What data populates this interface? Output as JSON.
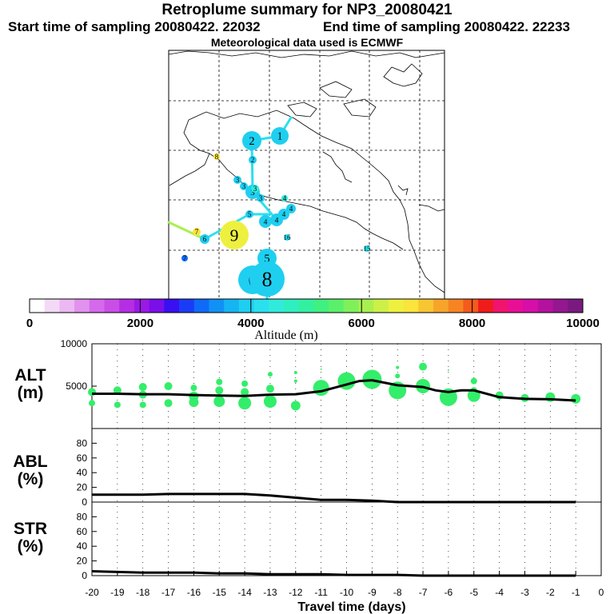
{
  "header": {
    "title": "Retroplume summary for NP3_20080421",
    "start_time": "Start time of sampling 20080422. 22032",
    "end_time": "End time of sampling 20080422. 22233",
    "met_data": "Meteorological data used is ECMWF"
  },
  "colorbar": {
    "min": 0,
    "max": 10000,
    "tick_labels": [
      "0",
      "2000",
      "4000",
      "6000",
      "8000",
      "10000"
    ],
    "tick_values": [
      0,
      2000,
      4000,
      6000,
      8000,
      10000
    ],
    "label": "Altitude (m)",
    "colors": [
      "#ffffff",
      "#f4d9f7",
      "#ecb8f2",
      "#e191ee",
      "#d569eb",
      "#c94ee6",
      "#b52ee4",
      "#9b19e6",
      "#7a0fea",
      "#3a0ff2",
      "#1a3cf7",
      "#0f6af7",
      "#1191f5",
      "#16b4f2",
      "#1fcff0",
      "#2ae0ee",
      "#30ebdc",
      "#2feec0",
      "#33f0a0",
      "#40f080",
      "#5af06a",
      "#80f05a",
      "#a8f050",
      "#cdf048",
      "#eef040",
      "#fbe43b",
      "#f8c632",
      "#f7a52a",
      "#f78422",
      "#f65a1c",
      "#f01c1c",
      "#f0146e",
      "#e80f96",
      "#d60fa8",
      "#b4129e",
      "#94178f",
      "#7a1a80"
    ]
  },
  "map": {
    "markers": [
      {
        "label": "1",
        "alt": 4000,
        "x": 350,
        "y": 170,
        "r": 11
      },
      {
        "label": "2",
        "alt": 4000,
        "x": 315,
        "y": 176,
        "r": 12
      },
      {
        "label": "2",
        "alt": 3900,
        "x": 316,
        "y": 200,
        "r": 5
      },
      {
        "label": "3",
        "alt": 4000,
        "x": 297,
        "y": 225,
        "r": 5
      },
      {
        "label": "3",
        "alt": 4000,
        "x": 305,
        "y": 233,
        "r": 5
      },
      {
        "label": "3",
        "alt": 4000,
        "x": 316,
        "y": 240,
        "r": 9
      },
      {
        "label": "3",
        "alt": 4500,
        "x": 319,
        "y": 236,
        "r": 5
      },
      {
        "label": "3",
        "alt": 4000,
        "x": 326,
        "y": 248,
        "r": 5
      },
      {
        "label": "4",
        "alt": 4500,
        "x": 356,
        "y": 248,
        "r": 4
      },
      {
        "label": "4",
        "alt": 4000,
        "x": 364,
        "y": 261,
        "r": 6
      },
      {
        "label": "4",
        "alt": 4000,
        "x": 355,
        "y": 268,
        "r": 7
      },
      {
        "label": "4",
        "alt": 4000,
        "x": 346,
        "y": 275,
        "r": 8
      },
      {
        "label": "4",
        "alt": 4000,
        "x": 332,
        "y": 277,
        "r": 8
      },
      {
        "label": "5",
        "alt": 4000,
        "x": 312,
        "y": 268,
        "r": 5
      },
      {
        "label": "6",
        "alt": 4000,
        "x": 256,
        "y": 299,
        "r": 6
      },
      {
        "label": "7",
        "alt": 7000,
        "x": 246,
        "y": 290,
        "r": 5
      },
      {
        "label": "8",
        "alt": 7000,
        "x": 271,
        "y": 196,
        "r": 4
      },
      {
        "label": "9",
        "alt": 6500,
        "x": 293,
        "y": 294,
        "r": 18
      },
      {
        "label": "16",
        "alt": 4200,
        "x": 359,
        "y": 297,
        "r": 4
      },
      {
        "label": "15",
        "alt": 4200,
        "x": 459,
        "y": 311,
        "r": 4
      },
      {
        "label": "7",
        "alt": 3000,
        "x": 231,
        "y": 323,
        "r": 4
      },
      {
        "label": "5",
        "alt": 4000,
        "x": 334,
        "y": 323,
        "r": 12
      },
      {
        "label": "6",
        "alt": 4000,
        "x": 316,
        "y": 350,
        "r": 18
      },
      {
        "label": "8",
        "alt": 4000,
        "x": 334,
        "y": 349,
        "r": 22
      }
    ]
  },
  "chart_data": [
    {
      "type": "scatter+line",
      "panel": "ALT",
      "ylabel": "ALT\n(m)",
      "ylabel_line1": "ALT",
      "ylabel_line2": "(m)",
      "xlim": [
        -20,
        0
      ],
      "ylim": [
        0,
        10000
      ],
      "ytick_labels": [
        "10000",
        "5000"
      ],
      "ytick_values": [
        10000,
        5000
      ],
      "median_line": {
        "x": [
          -20,
          -19,
          -18,
          -17,
          -16,
          -15,
          -14,
          -13,
          -12,
          -11,
          -10,
          -9.5,
          -9,
          -8,
          -7,
          -6.5,
          -6,
          -5.5,
          -5,
          -4,
          -3,
          -2,
          -1
        ],
        "y": [
          4100,
          4100,
          4050,
          4050,
          3950,
          3900,
          3850,
          4000,
          4050,
          4400,
          5200,
          5600,
          5700,
          5100,
          4900,
          4500,
          4300,
          4500,
          4500,
          3700,
          3500,
          3450,
          3300
        ]
      },
      "dots": [
        {
          "x": -20,
          "y": 4300,
          "s": 5
        },
        {
          "x": -20,
          "y": 3000,
          "s": 4
        },
        {
          "x": -19,
          "y": 4500,
          "s": 5
        },
        {
          "x": -19,
          "y": 2800,
          "s": 4
        },
        {
          "x": -18,
          "y": 4900,
          "s": 5
        },
        {
          "x": -18,
          "y": 4000,
          "s": 5
        },
        {
          "x": -18,
          "y": 2800,
          "s": 4
        },
        {
          "x": -17,
          "y": 5000,
          "s": 5
        },
        {
          "x": -17,
          "y": 3000,
          "s": 5
        },
        {
          "x": -16,
          "y": 4800,
          "s": 4
        },
        {
          "x": -16,
          "y": 3800,
          "s": 6
        },
        {
          "x": -16,
          "y": 3100,
          "s": 6
        },
        {
          "x": -15,
          "y": 5500,
          "s": 4
        },
        {
          "x": -15,
          "y": 4500,
          "s": 5
        },
        {
          "x": -15,
          "y": 3200,
          "s": 7
        },
        {
          "x": -14,
          "y": 5300,
          "s": 4
        },
        {
          "x": -14,
          "y": 4300,
          "s": 5
        },
        {
          "x": -14,
          "y": 3000,
          "s": 8
        },
        {
          "x": -13,
          "y": 6400,
          "s": 3
        },
        {
          "x": -13,
          "y": 4700,
          "s": 5
        },
        {
          "x": -13,
          "y": 3200,
          "s": 8
        },
        {
          "x": -12,
          "y": 6600,
          "s": 2
        },
        {
          "x": -12,
          "y": 5600,
          "s": 2
        },
        {
          "x": -12,
          "y": 2700,
          "s": 6
        },
        {
          "x": -11,
          "y": 7000,
          "s": 1
        },
        {
          "x": -11,
          "y": 4800,
          "s": 10
        },
        {
          "x": -10,
          "y": 5600,
          "s": 11
        },
        {
          "x": -9,
          "y": 5800,
          "s": 12
        },
        {
          "x": -8,
          "y": 7200,
          "s": 2
        },
        {
          "x": -8,
          "y": 6200,
          "s": 3
        },
        {
          "x": -8,
          "y": 4500,
          "s": 11
        },
        {
          "x": -7,
          "y": 7300,
          "s": 5
        },
        {
          "x": -7,
          "y": 5000,
          "s": 9
        },
        {
          "x": -6,
          "y": 6900,
          "s": 1
        },
        {
          "x": -6,
          "y": 3700,
          "s": 11
        },
        {
          "x": -5,
          "y": 5600,
          "s": 4
        },
        {
          "x": -5,
          "y": 4500,
          "s": 4
        },
        {
          "x": -5,
          "y": 3900,
          "s": 8
        },
        {
          "x": -4,
          "y": 3900,
          "s": 5
        },
        {
          "x": -3,
          "y": 3600,
          "s": 5
        },
        {
          "x": -2,
          "y": 3700,
          "s": 6
        },
        {
          "x": -1,
          "y": 3500,
          "s": 6
        }
      ]
    },
    {
      "type": "line",
      "panel": "ABL",
      "ylabel_line1": "ABL",
      "ylabel_line2": "(%)",
      "xlim": [
        -20,
        0
      ],
      "ylim": [
        0,
        100
      ],
      "ytick_labels": [
        "80",
        "60",
        "40",
        "20",
        "0"
      ],
      "ytick_values": [
        80,
        60,
        40,
        20,
        0
      ],
      "x": [
        -20,
        -19,
        -18,
        -17,
        -16,
        -15,
        -14,
        -13,
        -12,
        -11,
        -10,
        -9,
        -8,
        -7,
        -6,
        -5,
        -4,
        -3,
        -2,
        -1
      ],
      "y": [
        10,
        10,
        10,
        11,
        11,
        11,
        11,
        9,
        6,
        3,
        3,
        2,
        0,
        0,
        0,
        0,
        0,
        0,
        0,
        0
      ]
    },
    {
      "type": "line",
      "panel": "STR",
      "ylabel_line1": "STR",
      "ylabel_line2": "(%)",
      "xlim": [
        -20,
        0
      ],
      "ylim": [
        0,
        100
      ],
      "ytick_labels": [
        "80",
        "60",
        "40",
        "20",
        "0"
      ],
      "ytick_values": [
        80,
        60,
        40,
        20,
        0
      ],
      "x": [
        -20,
        -19,
        -18,
        -17,
        -16,
        -15,
        -14,
        -13,
        -12,
        -11,
        -10,
        -9,
        -8,
        -7,
        -6,
        -5,
        -4,
        -3,
        -2,
        -1
      ],
      "y": [
        6,
        5,
        4,
        4,
        4,
        3,
        3,
        2,
        2,
        2,
        1,
        1,
        1,
        0,
        0,
        0,
        0,
        0,
        0,
        0
      ]
    }
  ],
  "xaxis": {
    "label": "Travel time (days)",
    "tick_labels": [
      "-20",
      "-19",
      "-18",
      "-17",
      "-16",
      "-15",
      "-14",
      "-13",
      "-12",
      "-11",
      "-10",
      "-9",
      "-8",
      "-7",
      "-6",
      "-5",
      "-4",
      "-3",
      "-2",
      "-1",
      "0"
    ],
    "tick_values": [
      -20,
      -19,
      -18,
      -17,
      -16,
      -15,
      -14,
      -13,
      -12,
      -11,
      -10,
      -9,
      -8,
      -7,
      -6,
      -5,
      -4,
      -3,
      -2,
      -1,
      0
    ]
  }
}
